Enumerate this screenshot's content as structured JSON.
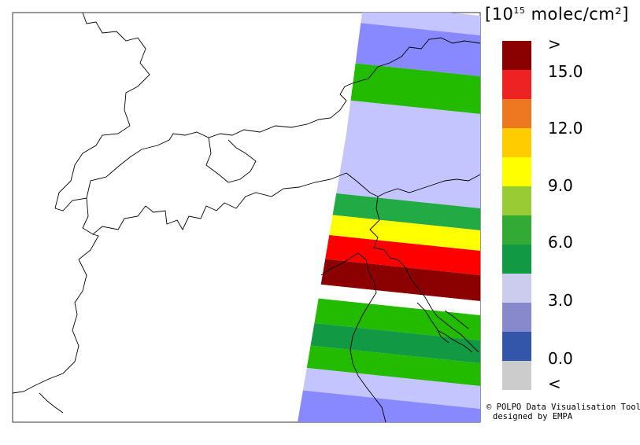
{
  "legend": {
    "unit_prefix": "[10",
    "unit_exp": "15",
    "unit_suffix": " molec/cm²]",
    "colors": [
      "#8b0000",
      "#ee2222",
      "#ee7722",
      "#ffcc00",
      "#ffff00",
      "#99cc33",
      "#33aa33",
      "#119944",
      "#ccccee",
      "#8888cc",
      "#3355aa",
      "#cccccc"
    ],
    "ticks": [
      ">",
      "15.0",
      "12.0",
      "9.0",
      "6.0",
      "3.0",
      "0.0",
      "<"
    ]
  },
  "credit": {
    "line1": "© POLPO Data Visualisation Tool",
    "line2": "designed by EMPA"
  },
  "bands": {
    "colors": [
      "#c4c4ff",
      "#8888ff",
      "#22bb00",
      "#c4c4ff",
      "#22aa44",
      "#ffff00",
      "#ff0000",
      "#8b0000",
      "#ffffff",
      "#22bb00",
      "#119944",
      "#22bb00",
      "#c4c4ff",
      "#8888ff"
    ],
    "value_classes": [
      "3.0–4.5",
      "1.5–3.0",
      "6.0–7.5",
      "3.0–4.5",
      "4.5–6.0",
      "9.0–10.5",
      "13.5–15.0",
      ">15.0",
      "no data",
      "6.0–7.5",
      "4.5–6.0",
      "6.0–7.5",
      "3.0–4.5",
      "1.5–3.0"
    ]
  }
}
